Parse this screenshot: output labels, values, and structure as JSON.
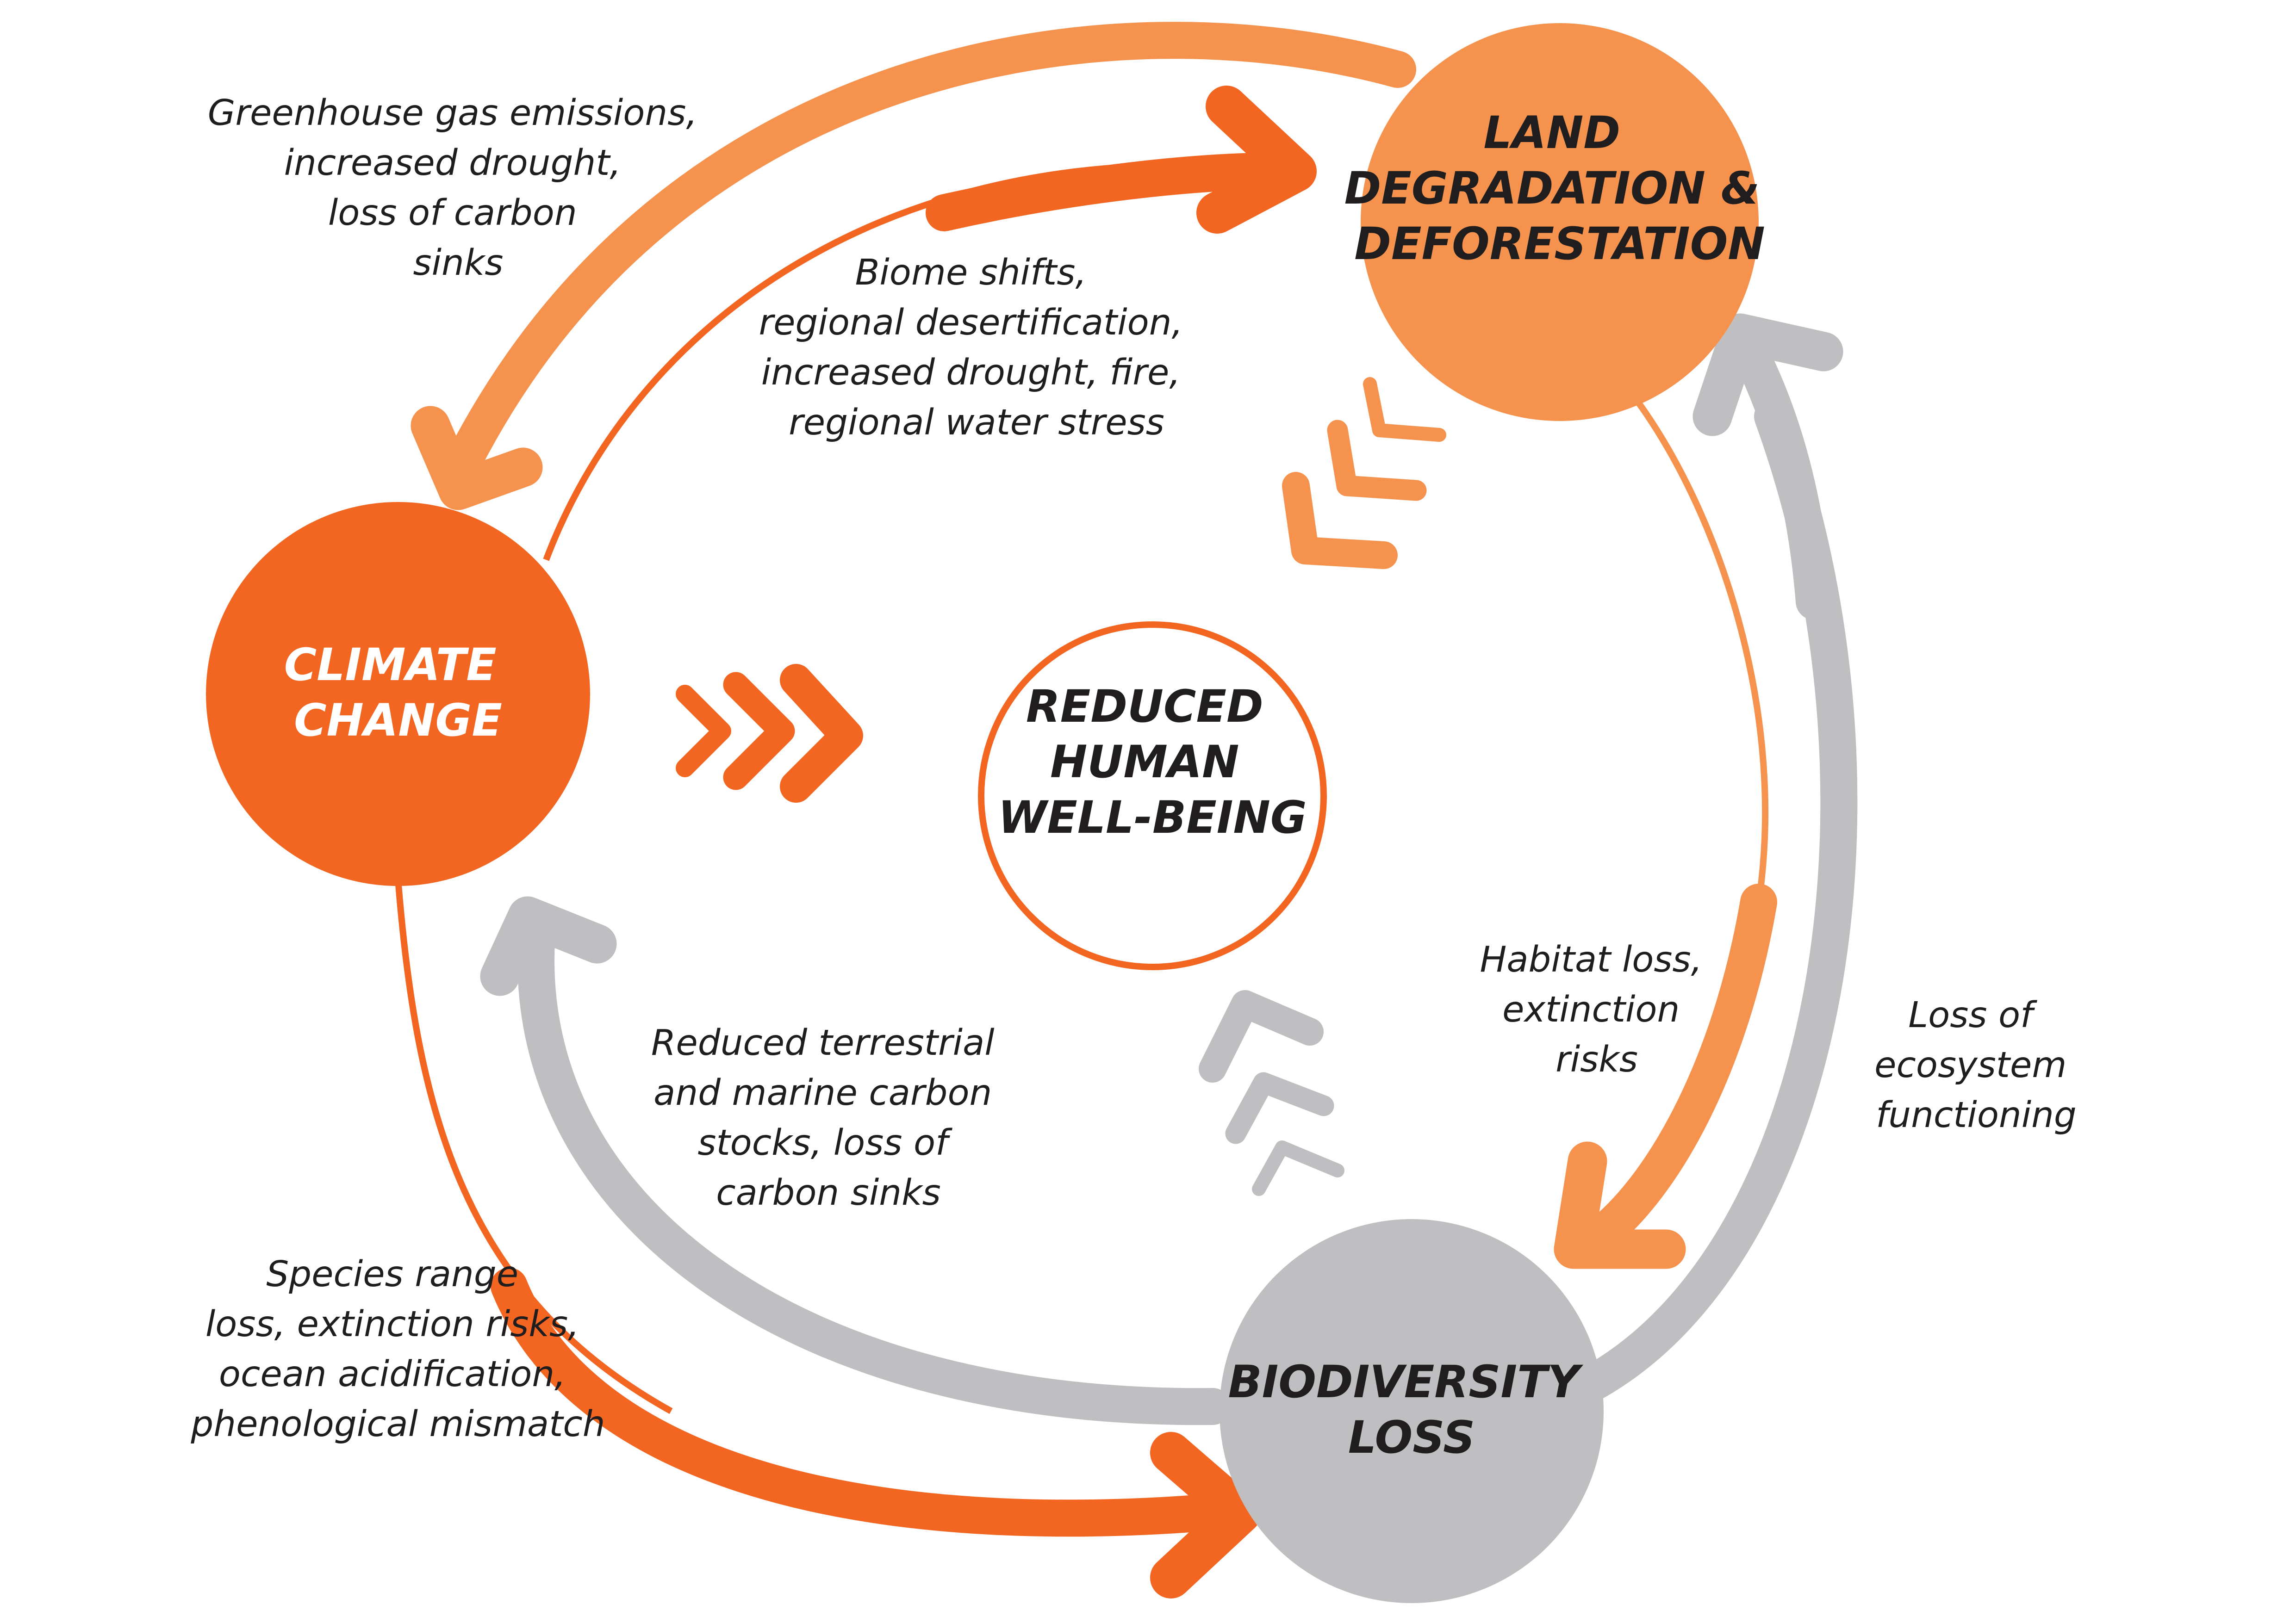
{
  "colors": {
    "climate": "#f26622",
    "land": "#f5934e",
    "biodiversity": "#bfbfc1",
    "center_stroke": "#f26622",
    "label_text": "#1f1d1d",
    "white": "#ffffff"
  },
  "nodes": {
    "climate_change": [
      "CLIMATE",
      "CHANGE"
    ],
    "land_degradation": [
      "LAND",
      "DEGRADATION &",
      "DEFORESTATION"
    ],
    "biodiversity_loss": [
      "BIODIVERSITY",
      "LOSS"
    ],
    "center": [
      "REDUCED",
      "HUMAN",
      "WELL-BEING"
    ]
  },
  "labels": {
    "land_to_climate": [
      "Greenhouse gas emissions,",
      "increased drought,",
      "loss of carbon",
      "sinks"
    ],
    "climate_to_land": [
      "Biome shifts,",
      "regional desertification,",
      "increased drought, fire,",
      "regional water stress"
    ],
    "land_to_biodiversity": [
      "Habitat loss,",
      "extinction",
      "risks"
    ],
    "biodiversity_to_land": [
      "Loss of",
      "ecosystem",
      "functioning"
    ],
    "biodiversity_to_climate": [
      "Reduced terrestrial",
      "and marine carbon",
      "stocks, loss of",
      "carbon sinks"
    ],
    "climate_to_biodiversity": [
      "Species range",
      "loss, extinction risks,",
      "ocean acidification,",
      "phenological mismatch"
    ]
  }
}
